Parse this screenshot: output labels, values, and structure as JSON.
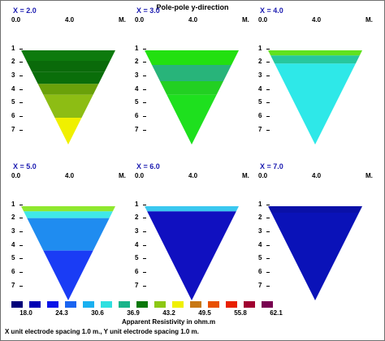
{
  "title": "Pole-pole y-direction",
  "panels": [
    {
      "x_label": "X = 2.0",
      "axis": {
        "left": "0.0",
        "mid": "4.0",
        "right": "M."
      },
      "bands": [
        [
          "1",
          "#0d7a0d"
        ],
        [
          "1.9",
          "#0a6a0a"
        ],
        [
          "2.7",
          "#0a6e0a"
        ],
        [
          "3.6",
          "#6aa10a"
        ],
        [
          "4.4",
          "#8dbd14"
        ],
        [
          "6.1",
          "#f0f000"
        ]
      ]
    },
    {
      "x_label": "X = 3.0",
      "axis": {
        "left": "0.0",
        "mid": "4.0",
        "right": "M."
      },
      "bands": [
        [
          "1",
          "#22e010"
        ],
        [
          "2.2",
          "#28b47a"
        ],
        [
          "3.4",
          "#22d022"
        ],
        [
          "4.4",
          "#1ee01e"
        ]
      ]
    },
    {
      "x_label": "X = 4.0",
      "axis": {
        "left": "0.0",
        "mid": "4.0",
        "right": "M."
      },
      "bands": [
        [
          "1",
          "#60e21f"
        ],
        [
          "1.5",
          "#27c79e"
        ],
        [
          "2.1",
          "#2ee8e8"
        ]
      ]
    },
    {
      "x_label": "X = 5.0",
      "axis": {
        "left": "0.0",
        "mid": "4.0",
        "right": "M."
      },
      "bands": [
        [
          "1",
          "#8fe82e"
        ],
        [
          "1.5",
          "#40e8e8"
        ],
        [
          "2",
          "#1f8cf0"
        ],
        [
          "4.4",
          "#1a3cf5"
        ]
      ]
    },
    {
      "x_label": "X = 6.0",
      "axis": {
        "left": "0.0",
        "mid": "4.0",
        "right": "M."
      },
      "bands": [
        [
          "1",
          "#3ac8f0"
        ],
        [
          "1.5",
          "#1010c0"
        ]
      ]
    },
    {
      "x_label": "X = 7.0",
      "axis": {
        "left": "0.0",
        "mid": "4.0",
        "right": "M."
      },
      "bands": [
        [
          "1",
          "#0a10a8"
        ],
        [
          "1.6",
          "#0a12b8"
        ]
      ]
    }
  ],
  "depth_labels": [
    "1",
    "2",
    "3",
    "4",
    "5",
    "6",
    "7"
  ],
  "legend": {
    "colors": [
      "#00007a",
      "#0000b4",
      "#0a14e8",
      "#1a64f0",
      "#1ab0f0",
      "#2ee0e0",
      "#1ab48a",
      "#0a780a",
      "#8cc814",
      "#f0f000",
      "#c87814",
      "#e85000",
      "#e82000",
      "#a00030",
      "#780050"
    ],
    "values": [
      "18.0",
      "24.3",
      "30.6",
      "36.9",
      "43.2",
      "49.5",
      "55.8",
      "62.1"
    ],
    "title": "Apparent Resistivity in ohm.m",
    "spacing_note": "X unit electrode spacing 1.0 m., Y unit electrode spacing 1.0 m."
  }
}
